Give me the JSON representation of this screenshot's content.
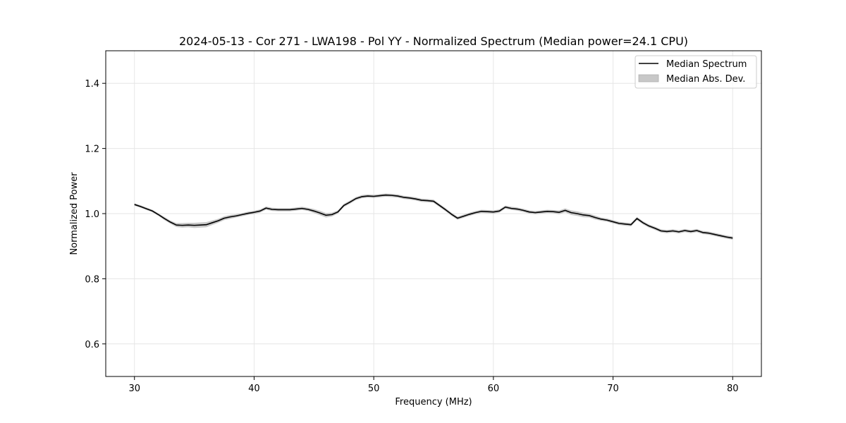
{
  "chart_data": {
    "type": "line",
    "title": "2024-05-13 - Cor 271 - LWA198 - Pol YY - Normalized Spectrum (Median power=24.1 CPU)",
    "xlabel": "Frequency (MHz)",
    "ylabel": "Normalized Power",
    "xlim": [
      27.6,
      82.4
    ],
    "ylim": [
      0.5,
      1.5
    ],
    "xticks": [
      30,
      40,
      50,
      60,
      70,
      80
    ],
    "yticks": [
      0.6,
      0.8,
      1.0,
      1.2,
      1.4
    ],
    "xtick_labels": [
      "30",
      "40",
      "50",
      "60",
      "70",
      "80"
    ],
    "ytick_labels": [
      "0.6",
      "0.8",
      "1.0",
      "1.2",
      "1.4"
    ],
    "grid": true,
    "legend_position": "top-right",
    "legend": [
      "Median Spectrum",
      "Median Abs. Dev."
    ],
    "colors": {
      "line": "#000000",
      "band": "#bfbfbf",
      "grid": "#e6e6e6"
    },
    "series": [
      {
        "name": "Median Spectrum",
        "x": [
          30,
          30.5,
          31,
          31.5,
          32,
          32.5,
          33,
          33.5,
          34,
          34.5,
          35,
          35.5,
          36,
          36.5,
          37,
          37.5,
          38,
          38.5,
          39,
          39.5,
          40,
          40.5,
          41,
          41.5,
          42,
          42.5,
          43,
          43.5,
          44,
          44.5,
          45,
          45.5,
          46,
          46.5,
          47,
          47.5,
          48,
          48.5,
          49,
          49.5,
          50,
          50.5,
          51,
          51.5,
          52,
          52.5,
          53,
          53.5,
          54,
          54.5,
          55,
          55.5,
          56,
          56.5,
          57,
          57.5,
          58,
          58.5,
          59,
          59.5,
          60,
          60.5,
          61,
          61.5,
          62,
          62.5,
          63,
          63.5,
          64,
          64.5,
          65,
          65.5,
          66,
          66.5,
          67,
          67.5,
          68,
          68.5,
          69,
          69.5,
          70,
          70.5,
          71,
          71.5,
          72,
          72.5,
          73,
          73.5,
          74,
          74.5,
          75,
          75.5,
          76,
          76.5,
          77,
          77.5,
          78,
          78.5,
          79,
          79.5,
          80
        ],
        "values": [
          1.028,
          1.022,
          1.015,
          1.008,
          0.997,
          0.985,
          0.974,
          0.965,
          0.964,
          0.965,
          0.964,
          0.965,
          0.966,
          0.972,
          0.978,
          0.986,
          0.99,
          0.993,
          0.997,
          1.001,
          1.004,
          1.008,
          1.017,
          1.013,
          1.012,
          1.012,
          1.012,
          1.014,
          1.016,
          1.013,
          1.008,
          1.002,
          0.995,
          0.997,
          1.005,
          1.025,
          1.035,
          1.046,
          1.052,
          1.054,
          1.053,
          1.055,
          1.057,
          1.056,
          1.054,
          1.05,
          1.048,
          1.045,
          1.041,
          1.04,
          1.038,
          1.025,
          1.012,
          0.998,
          0.986,
          0.992,
          0.998,
          1.003,
          1.007,
          1.006,
          1.005,
          1.008,
          1.02,
          1.016,
          1.014,
          1.01,
          1.005,
          1.003,
          1.005,
          1.007,
          1.006,
          1.004,
          1.01,
          1.003,
          1.0,
          0.996,
          0.994,
          0.988,
          0.983,
          0.98,
          0.975,
          0.97,
          0.968,
          0.966,
          0.985,
          0.972,
          0.962,
          0.955,
          0.947,
          0.945,
          0.947,
          0.944,
          0.948,
          0.945,
          0.948,
          0.942,
          0.94,
          0.936,
          0.932,
          0.928,
          0.925
        ],
        "mad": [
          0.004,
          0.004,
          0.004,
          0.004,
          0.004,
          0.005,
          0.005,
          0.006,
          0.007,
          0.007,
          0.008,
          0.008,
          0.008,
          0.007,
          0.006,
          0.006,
          0.006,
          0.005,
          0.005,
          0.005,
          0.005,
          0.005,
          0.005,
          0.005,
          0.005,
          0.005,
          0.005,
          0.005,
          0.005,
          0.005,
          0.006,
          0.007,
          0.007,
          0.006,
          0.005,
          0.005,
          0.005,
          0.005,
          0.005,
          0.005,
          0.005,
          0.005,
          0.005,
          0.005,
          0.005,
          0.005,
          0.005,
          0.005,
          0.005,
          0.005,
          0.005,
          0.005,
          0.005,
          0.005,
          0.005,
          0.005,
          0.005,
          0.005,
          0.005,
          0.005,
          0.005,
          0.005,
          0.005,
          0.005,
          0.005,
          0.005,
          0.005,
          0.005,
          0.005,
          0.005,
          0.005,
          0.006,
          0.006,
          0.007,
          0.007,
          0.007,
          0.006,
          0.006,
          0.005,
          0.005,
          0.005,
          0.005,
          0.005,
          0.005,
          0.005,
          0.005,
          0.005,
          0.005,
          0.005,
          0.005,
          0.005,
          0.005,
          0.005,
          0.005,
          0.005,
          0.005,
          0.005,
          0.005,
          0.005,
          0.005,
          0.005
        ]
      }
    ]
  }
}
